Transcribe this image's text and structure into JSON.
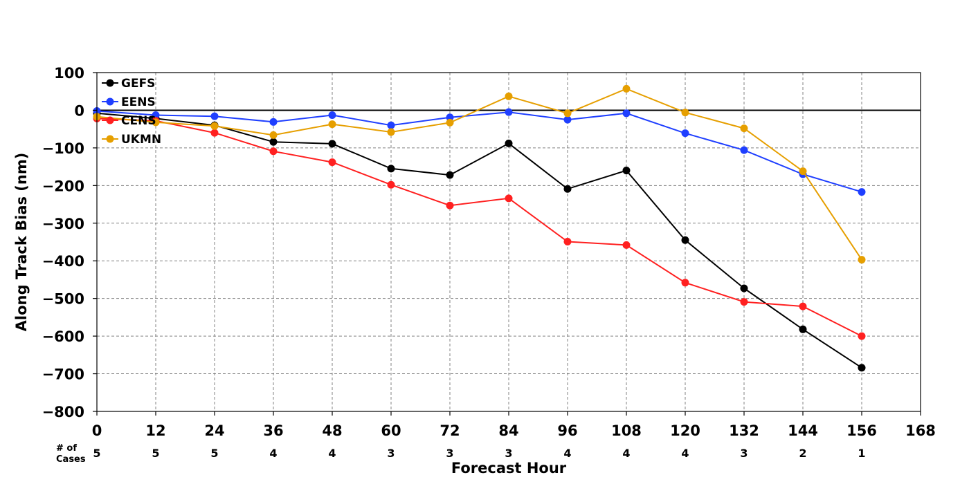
{
  "chart_data": {
    "type": "line",
    "xlabel": "Forecast Hour",
    "ylabel": "Along Track Bias (nm)",
    "xlim": [
      0,
      168
    ],
    "ylim": [
      -800,
      100
    ],
    "xticks": [
      0,
      12,
      24,
      36,
      48,
      60,
      72,
      84,
      96,
      108,
      120,
      132,
      144,
      156,
      168
    ],
    "yticks": [
      100,
      0,
      -100,
      -200,
      -300,
      -400,
      -500,
      -600,
      -700,
      -800
    ],
    "grid": true,
    "legend_position": "top-left",
    "x": [
      0,
      12,
      24,
      36,
      48,
      60,
      72,
      84,
      96,
      108,
      120,
      132,
      144,
      156
    ],
    "series": [
      {
        "name": "GEFS",
        "color": "#000000",
        "values": [
          -8,
          -22,
          -40,
          -84,
          -89,
          -155,
          -172,
          -88,
          -209,
          -160,
          -345,
          -473,
          -582,
          -684
        ]
      },
      {
        "name": "EENS",
        "color": "#1f3fff",
        "values": [
          -2,
          -13,
          -16,
          -31,
          -13,
          -40,
          -19,
          -5,
          -25,
          -8,
          -61,
          -106,
          -170,
          -217
        ]
      },
      {
        "name": "CENS",
        "color": "#ff2020",
        "values": [
          -22,
          -28,
          -60,
          -109,
          -138,
          -198,
          -253,
          -234,
          -349,
          -358,
          -458,
          -509,
          -521,
          -600
        ]
      },
      {
        "name": "UKMN",
        "color": "#e69f00",
        "values": [
          -17,
          -32,
          -42,
          -66,
          -37,
          -58,
          -33,
          37,
          -8,
          57,
          -6,
          -48,
          -162,
          -397
        ]
      }
    ],
    "cases": {
      "label_line1": "# of",
      "label_line2": "Cases",
      "values": [
        5,
        5,
        5,
        4,
        4,
        3,
        3,
        3,
        4,
        4,
        4,
        3,
        2,
        1
      ]
    }
  }
}
